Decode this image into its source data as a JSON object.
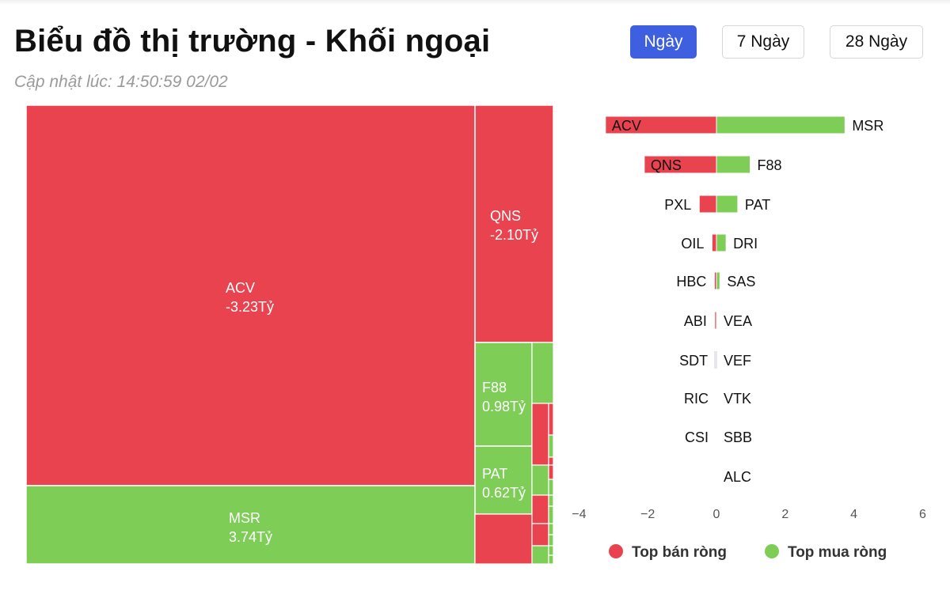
{
  "header": {
    "title": "Biểu đồ thị trường - Khối ngoại",
    "updated": "Cập nhật lúc: 14:50:59 02/02"
  },
  "periods": {
    "day": "Ngày",
    "week": "7 Ngày",
    "month": "28 Ngày",
    "active": "day"
  },
  "colors": {
    "sell": "#e8434f",
    "buy": "#7dcd57",
    "active_button": "#3d5fe0",
    "neutral": "#e6e6ee"
  },
  "chart_data": [
    {
      "type": "treemap",
      "unit": "Tỷ",
      "items": [
        {
          "ticker": "ACV",
          "value": -3.23,
          "label": "ACV",
          "value_label": "-3.23Tỷ"
        },
        {
          "ticker": "MSR",
          "value": 3.74,
          "label": "MSR",
          "value_label": "3.74Tỷ"
        },
        {
          "ticker": "QNS",
          "value": -2.1,
          "label": "QNS",
          "value_label": "-2.10Tỷ"
        },
        {
          "ticker": "F88",
          "value": 0.98,
          "label": "F88",
          "value_label": "0.98Tỷ"
        },
        {
          "ticker": "PAT",
          "value": 0.62,
          "label": "PAT",
          "value_label": "0.62Tỷ"
        }
      ]
    },
    {
      "type": "bar",
      "orientation": "horizontal-diverging",
      "sell": [
        {
          "ticker": "ACV",
          "value": -3.23
        },
        {
          "ticker": "QNS",
          "value": -2.1
        },
        {
          "ticker": "PXL",
          "value": -0.5
        },
        {
          "ticker": "OIL",
          "value": -0.13
        },
        {
          "ticker": "HBC",
          "value": -0.06
        },
        {
          "ticker": "ABI",
          "value": -0.05
        },
        {
          "ticker": "SDT",
          "value": -0.02
        },
        {
          "ticker": "RIC",
          "value": 0
        },
        {
          "ticker": "CSI",
          "value": 0
        }
      ],
      "buy": [
        {
          "ticker": "MSR",
          "value": 3.74
        },
        {
          "ticker": "F88",
          "value": 0.98
        },
        {
          "ticker": "PAT",
          "value": 0.62
        },
        {
          "ticker": "DRI",
          "value": 0.28
        },
        {
          "ticker": "SAS",
          "value": 0.1
        },
        {
          "ticker": "VEA",
          "value": 0
        },
        {
          "ticker": "VEF",
          "value": 0
        },
        {
          "ticker": "VTK",
          "value": 0
        },
        {
          "ticker": "SBB",
          "value": 0
        },
        {
          "ticker": "ALC",
          "value": 0
        }
      ],
      "xlim": [
        -4,
        6
      ],
      "xticks": [
        "−4",
        "−2",
        "0",
        "2",
        "4",
        "6"
      ],
      "xtick_values": [
        -4,
        -2,
        0,
        2,
        4,
        6
      ],
      "legend": [
        {
          "label": "Top bán ròng",
          "series": "sell"
        },
        {
          "label": "Top mua ròng",
          "series": "buy"
        }
      ],
      "legend_position": "bottom"
    }
  ]
}
